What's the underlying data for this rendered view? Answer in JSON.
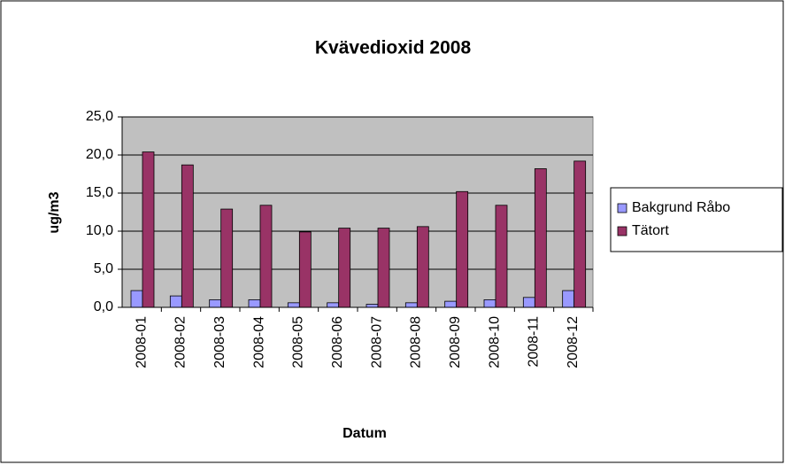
{
  "chart_data": {
    "type": "bar",
    "title": "Kvävedioxid 2008",
    "x_label": "Datum",
    "y_label": "ug/m3",
    "categories": [
      "2008-01",
      "2008-02",
      "2008-03",
      "2008-04",
      "2008-05",
      "2008-06",
      "2008-07",
      "2008-08",
      "2008-09",
      "2008-10",
      "2008-11",
      "2008-12"
    ],
    "series": [
      {
        "name": "Bakgrund Råbo",
        "color": "#9999ff",
        "values": [
          2.2,
          1.5,
          1.0,
          1.0,
          0.6,
          0.6,
          0.4,
          0.6,
          0.8,
          1.0,
          1.3,
          2.2
        ]
      },
      {
        "name": "Tätort",
        "color": "#993366",
        "values": [
          20.4,
          18.7,
          12.9,
          13.4,
          9.9,
          10.4,
          10.4,
          10.6,
          15.2,
          13.4,
          18.2,
          19.2
        ]
      }
    ],
    "ylim": [
      0,
      25
    ],
    "yticks": [
      {
        "value": 0,
        "label": "0,0"
      },
      {
        "value": 5,
        "label": "5,0"
      },
      {
        "value": 10,
        "label": "10,0"
      },
      {
        "value": 15,
        "label": "15,0"
      },
      {
        "value": 20,
        "label": "20,0"
      },
      {
        "value": 25,
        "label": "25,0"
      }
    ],
    "grid": true,
    "legend": "right"
  }
}
